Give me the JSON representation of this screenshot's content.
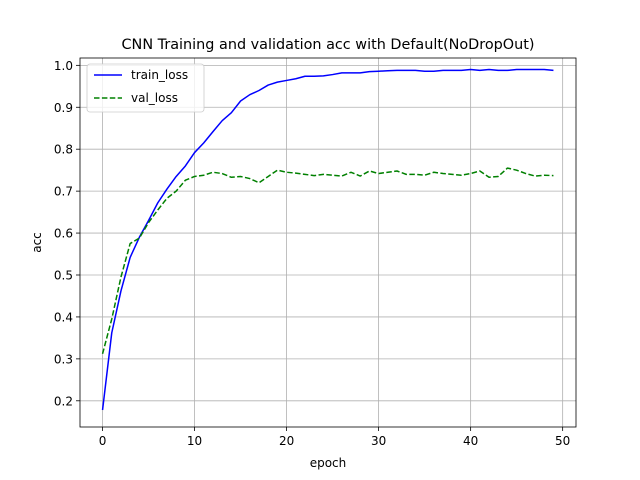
{
  "chart_data": {
    "type": "line",
    "title": "CNN Training and validation acc with Default(NoDropOut)",
    "xlabel": "epoch",
    "ylabel": "acc",
    "xlim": [
      -2.45,
      51.45
    ],
    "ylim": [
      0.1375,
      1.0175
    ],
    "xticks": [
      0,
      10,
      20,
      30,
      40,
      50
    ],
    "yticks": [
      0.2,
      0.3,
      0.4,
      0.5,
      0.6,
      0.7,
      0.8,
      0.9,
      1.0
    ],
    "grid": true,
    "legend": "top-left",
    "series": [
      {
        "name": "train_loss",
        "color": "#0000ff",
        "style": "solid",
        "x": [
          0,
          1,
          2,
          3,
          4,
          5,
          6,
          7,
          8,
          9,
          10,
          11,
          12,
          13,
          14,
          15,
          16,
          17,
          18,
          19,
          20,
          21,
          22,
          23,
          24,
          25,
          26,
          27,
          28,
          29,
          30,
          31,
          32,
          33,
          34,
          35,
          36,
          37,
          38,
          39,
          40,
          41,
          42,
          43,
          44,
          45,
          46,
          47,
          48,
          49
        ],
        "y": [
          0.178,
          0.362,
          0.462,
          0.542,
          0.59,
          0.63,
          0.672,
          0.705,
          0.735,
          0.76,
          0.792,
          0.815,
          0.842,
          0.868,
          0.887,
          0.915,
          0.93,
          0.94,
          0.953,
          0.96,
          0.964,
          0.968,
          0.974,
          0.974,
          0.975,
          0.978,
          0.982,
          0.982,
          0.982,
          0.985,
          0.986,
          0.987,
          0.988,
          0.988,
          0.988,
          0.986,
          0.986,
          0.988,
          0.988,
          0.988,
          0.99,
          0.988,
          0.99,
          0.988,
          0.988,
          0.99,
          0.99,
          0.99,
          0.99,
          0.988
        ]
      },
      {
        "name": "val_loss",
        "color": "#008000",
        "style": "dashed",
        "x": [
          0,
          1,
          2,
          3,
          4,
          5,
          6,
          7,
          8,
          9,
          10,
          11,
          12,
          13,
          14,
          15,
          16,
          17,
          18,
          19,
          20,
          21,
          22,
          23,
          24,
          25,
          26,
          27,
          28,
          29,
          30,
          31,
          32,
          33,
          34,
          35,
          36,
          37,
          38,
          39,
          40,
          41,
          42,
          43,
          44,
          45,
          46,
          47,
          48,
          49
        ],
        "y": [
          0.312,
          0.395,
          0.495,
          0.575,
          0.588,
          0.625,
          0.655,
          0.683,
          0.7,
          0.726,
          0.735,
          0.738,
          0.745,
          0.742,
          0.733,
          0.735,
          0.73,
          0.72,
          0.735,
          0.75,
          0.745,
          0.743,
          0.74,
          0.737,
          0.74,
          0.738,
          0.736,
          0.745,
          0.736,
          0.748,
          0.742,
          0.745,
          0.748,
          0.74,
          0.74,
          0.738,
          0.745,
          0.742,
          0.74,
          0.738,
          0.742,
          0.748,
          0.733,
          0.735,
          0.755,
          0.75,
          0.742,
          0.736,
          0.738,
          0.737
        ]
      }
    ]
  }
}
